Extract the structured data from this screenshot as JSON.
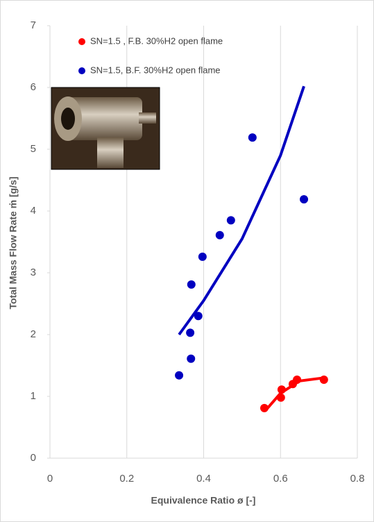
{
  "chart_data": {
    "type": "scatter",
    "xlabel": "Equivalence Ratio ø [-]",
    "ylabel": "Total Mass Flow Rate ṁ [g/s]",
    "xlim": [
      0,
      0.8
    ],
    "xticks": [
      0,
      0.2,
      0.4,
      0.6,
      0.8
    ],
    "ylim": [
      0,
      7
    ],
    "yticks": [
      0,
      1,
      2,
      3,
      4,
      5,
      6,
      7
    ],
    "grid": "x",
    "legend": "upper left",
    "series": [
      {
        "name": "SN=1.5 , F.B. 30%H2 open flame",
        "color": "#ff0000",
        "x": [
          0.558,
          0.601,
          0.603,
          0.632,
          0.643,
          0.713
        ],
        "values": [
          0.81,
          0.98,
          1.11,
          1.2,
          1.27,
          1.27
        ],
        "trendline": {
          "x": [
            0.565,
            0.6,
            0.65,
            0.713
          ],
          "values": [
            0.8,
            1.05,
            1.25,
            1.3
          ]
        }
      },
      {
        "name": "SN=1.5, B.F. 30%H2 open flame",
        "color": "#0000c0",
        "x": [
          0.336,
          0.367,
          0.365,
          0.386,
          0.368,
          0.397,
          0.442,
          0.471,
          0.527,
          0.661
        ],
        "values": [
          1.34,
          1.61,
          2.03,
          2.3,
          2.81,
          3.26,
          3.61,
          3.85,
          5.19,
          4.19
        ],
        "trendline": {
          "x": [
            0.336,
            0.4,
            0.5,
            0.6,
            0.661
          ],
          "values": [
            2.0,
            2.55,
            3.55,
            4.9,
            6.02
          ]
        }
      }
    ]
  }
}
